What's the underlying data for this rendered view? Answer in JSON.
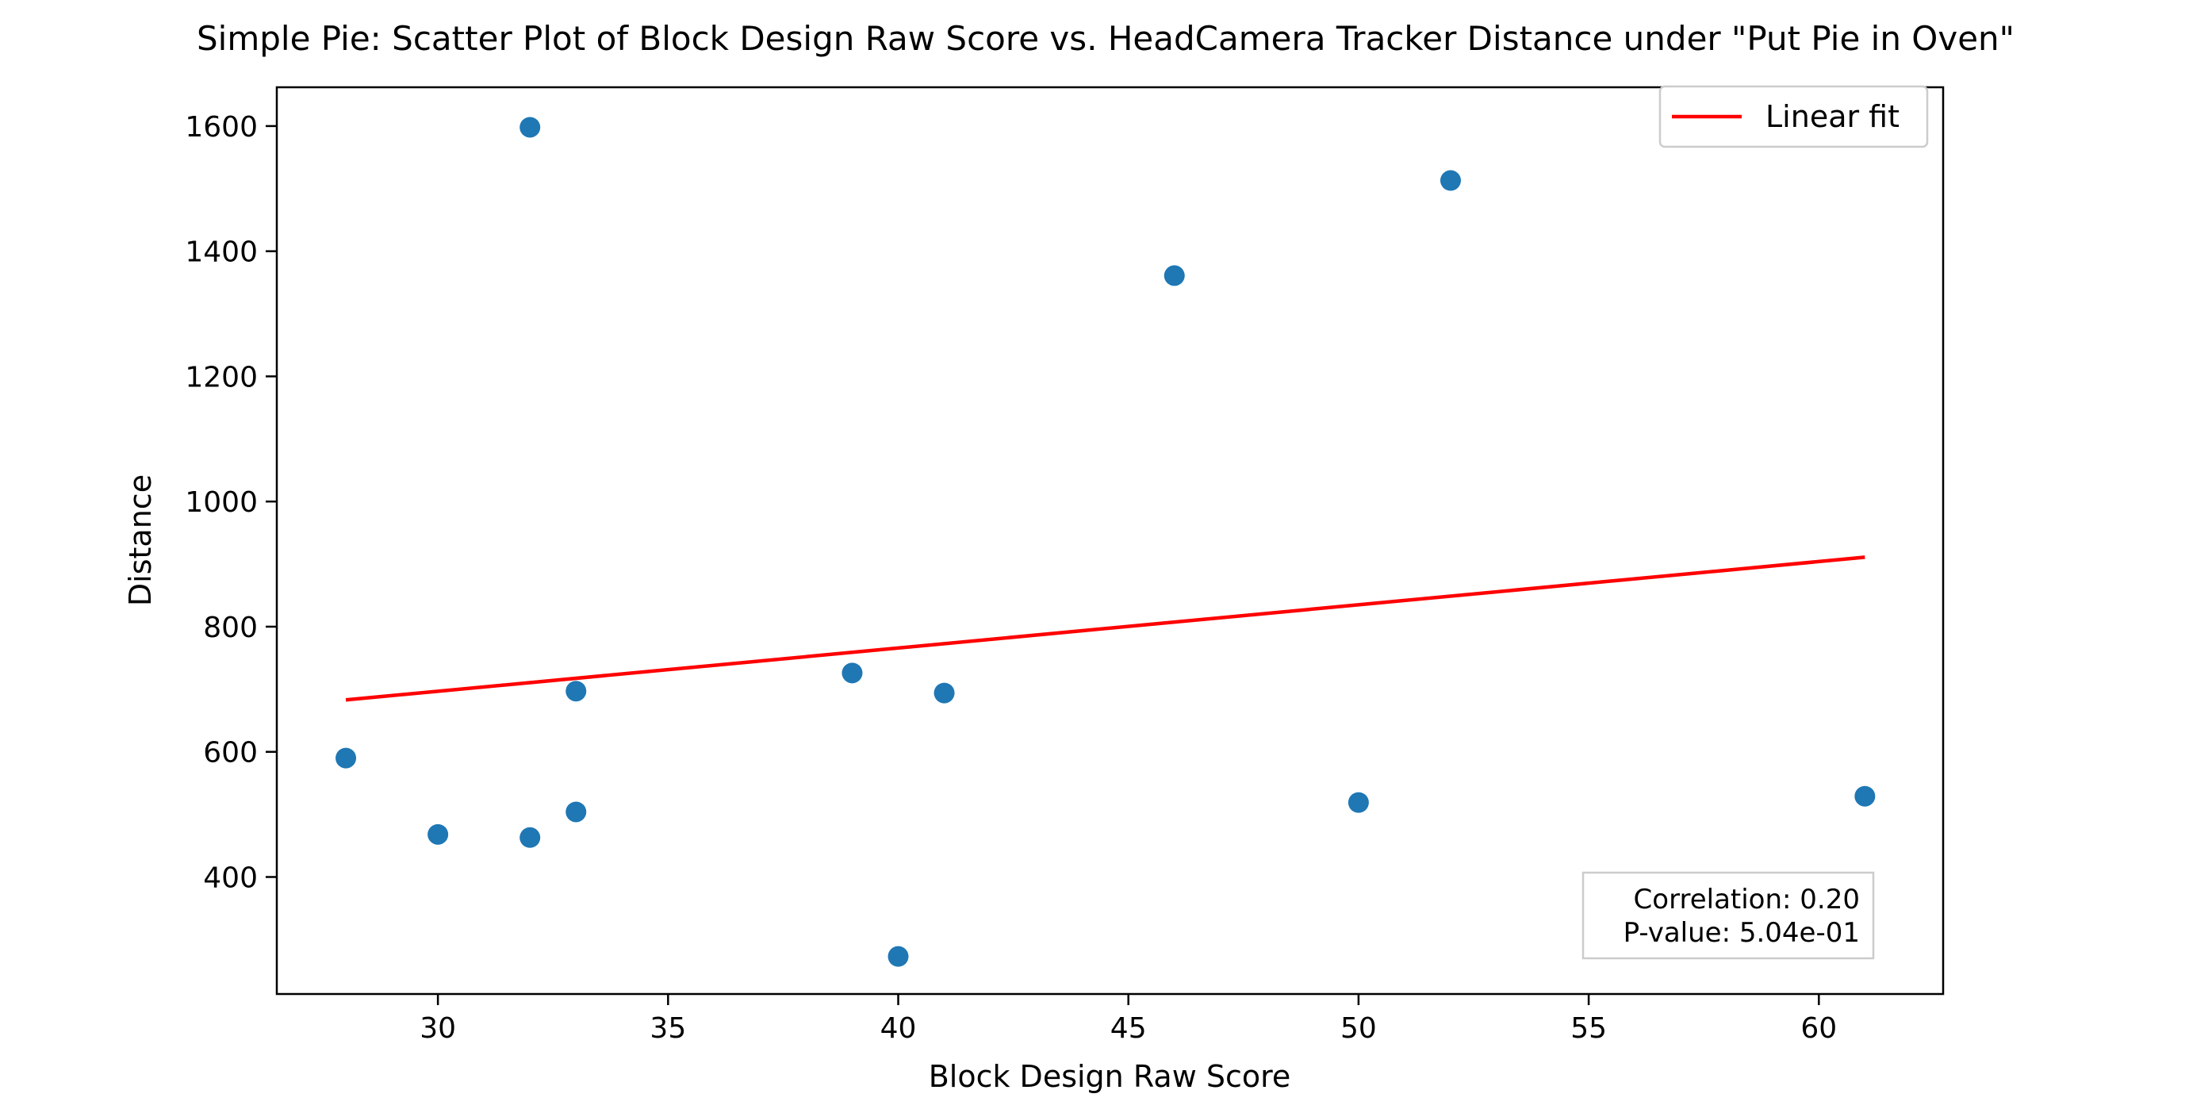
{
  "colors": {
    "points": "#1f77b4",
    "fit_line": "#ff0000",
    "axes": "#000000",
    "stats_box_border": "#cccccc",
    "legend_border": "#cccccc"
  },
  "chart_data": {
    "type": "scatter",
    "title": "Simple Pie: Scatter Plot of Block Design Raw Score vs. HeadCamera Tracker Distance under \"Put Pie in Oven\"",
    "xlabel": "Block Design Raw Score",
    "ylabel": "Distance",
    "xlim": [
      26.5,
      62.7
    ],
    "ylim": [
      213,
      1662
    ],
    "xticks": [
      30,
      35,
      40,
      45,
      50,
      55,
      60
    ],
    "yticks": [
      400,
      600,
      800,
      1000,
      1200,
      1400,
      1600
    ],
    "grid": false,
    "legend_position": "top-right",
    "series": [
      {
        "type": "scatter",
        "x": [
          28,
          30,
          32,
          32,
          33,
          33,
          39,
          40,
          41,
          46,
          50,
          52,
          61
        ],
        "y": [
          590,
          468,
          1598,
          463,
          697,
          504,
          726,
          273,
          694,
          1361,
          519,
          1513,
          529
        ]
      },
      {
        "type": "line",
        "name": "Linear fit",
        "x": [
          28,
          61
        ],
        "y": [
          683,
          911
        ]
      }
    ],
    "annotations": [
      "Correlation: 0.20",
      "P-value: 5.04e-01"
    ]
  }
}
